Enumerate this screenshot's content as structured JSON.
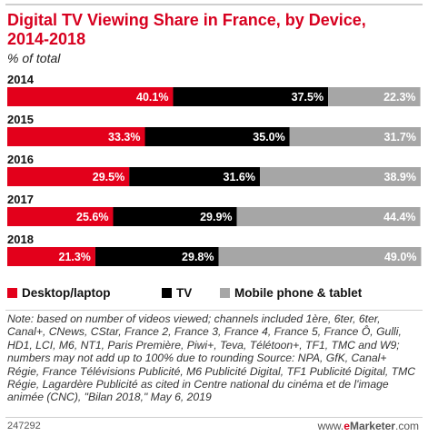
{
  "header": {
    "title": "Digital TV Viewing Share in France, by Device, 2014-2018",
    "subtitle": "% of total"
  },
  "colors": {
    "desktop": "#e3001b",
    "tv": "#000000",
    "mobile": "#a6a6a6",
    "brand": "#d7001f"
  },
  "chart_data": {
    "type": "bar",
    "orientation": "horizontal-stacked",
    "title": "Digital TV Viewing Share in France, by Device, 2014-2018",
    "subtitle": "% of total",
    "categories": [
      "2014",
      "2015",
      "2016",
      "2017",
      "2018"
    ],
    "series": [
      {
        "name": "Desktop/laptop",
        "values": [
          40.1,
          33.3,
          29.5,
          25.6,
          21.3
        ],
        "labels": [
          "40.1%",
          "33.3%",
          "29.5%",
          "25.6%",
          "21.3%"
        ]
      },
      {
        "name": "TV",
        "values": [
          37.5,
          35.0,
          31.6,
          29.9,
          29.8
        ],
        "labels": [
          "37.5%",
          "35.0%",
          "31.6%",
          "29.9%",
          "29.8%"
        ]
      },
      {
        "name": "Mobile phone & tablet",
        "values": [
          22.3,
          31.7,
          38.9,
          44.4,
          49.0
        ],
        "labels": [
          "22.3%",
          "31.7%",
          "38.9%",
          "44.4%",
          "49.0%"
        ]
      }
    ],
    "xlim": [
      0,
      100
    ],
    "legend_position": "bottom",
    "grid": false
  },
  "legend": {
    "items": [
      {
        "label": "Desktop/laptop"
      },
      {
        "label": "TV"
      },
      {
        "label": "Mobile phone & tablet"
      }
    ]
  },
  "note": "Note: based on number of videos viewed; channels included 1ère, 6ter, 6ter, Canal+, CNews, CStar, France 2, France 3, France 4, France 5, France Ô, Gulli, HD1, LCI, M6, NT1, Paris Première, Piwi+, Teva, Télétoon+, TF1, TMC and W9; numbers may not add up to 100% due to rounding\nSource: NPA, GfK, Canal+ Régie, France Télévisions Publicité, M6 Publicité Digital, TF1 Publicité Digital, TMC Régie, Lagardère Publicité as cited in Centre national du cinéma et de l'image animée (CNC), \"Bilan 2018,\" May 6, 2019",
  "footer": {
    "chart_id": "247292",
    "brand_prefix": "www.",
    "brand_e": "e",
    "brand_rest": "Marketer",
    "brand_suffix": ".com"
  }
}
